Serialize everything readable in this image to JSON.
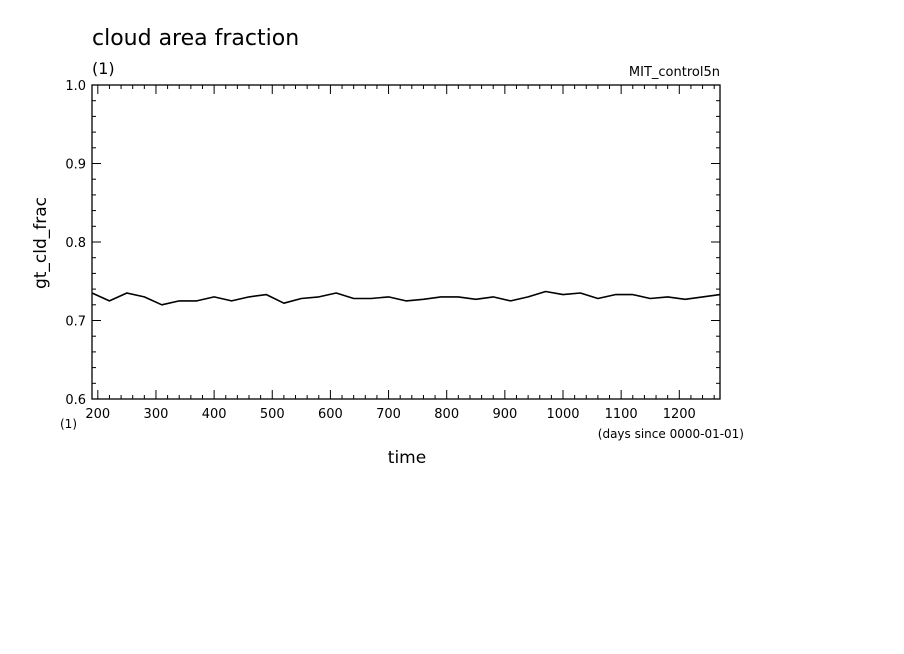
{
  "chart_data": {
    "type": "line",
    "title": "cloud area fraction",
    "title_unit": "(1)",
    "run_label": "MIT_control5n",
    "ylabel": "gt_cld_frac",
    "xlabel": "time",
    "x_unit_label": "(days since 0000-01-01)",
    "y_unit_label": "(1)",
    "xlim": [
      190,
      1270
    ],
    "ylim": [
      0.6,
      1.0
    ],
    "x_ticks": [
      200,
      300,
      400,
      500,
      600,
      700,
      800,
      900,
      1000,
      1100,
      1200
    ],
    "x_tick_labels": [
      "200",
      "300",
      "400",
      "500",
      "600",
      "700",
      "800",
      "900",
      "1000",
      "1100",
      "1200"
    ],
    "y_ticks": [
      0.6,
      0.7,
      0.8,
      0.9,
      1.0
    ],
    "y_tick_labels": [
      "0.6",
      "0.7",
      "0.8",
      "0.9",
      "1.0"
    ],
    "grid": false,
    "line_color": "#000000",
    "series": [
      {
        "x": [
          190,
          220,
          250,
          280,
          310,
          340,
          370,
          400,
          430,
          460,
          490,
          520,
          550,
          580,
          610,
          640,
          670,
          700,
          730,
          760,
          790,
          820,
          850,
          880,
          910,
          940,
          970,
          1000,
          1030,
          1060,
          1090,
          1120,
          1150,
          1180,
          1210,
          1240,
          1270
        ],
        "y": [
          0.735,
          0.725,
          0.735,
          0.73,
          0.72,
          0.725,
          0.725,
          0.73,
          0.725,
          0.73,
          0.733,
          0.722,
          0.728,
          0.73,
          0.735,
          0.728,
          0.728,
          0.73,
          0.725,
          0.727,
          0.73,
          0.73,
          0.727,
          0.73,
          0.725,
          0.73,
          0.737,
          0.733,
          0.735,
          0.728,
          0.733,
          0.733,
          0.728,
          0.73,
          0.727,
          0.73,
          0.733
        ]
      }
    ]
  }
}
